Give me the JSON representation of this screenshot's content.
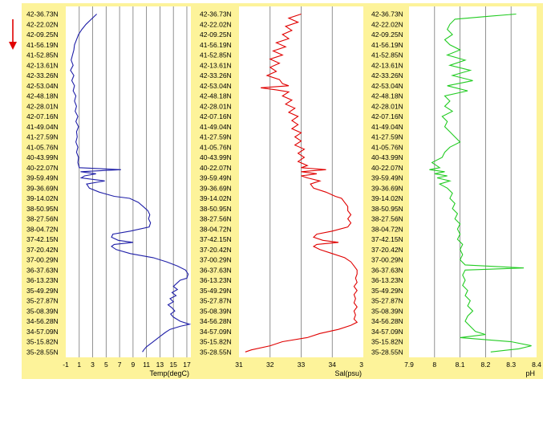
{
  "chart_data": [
    {
      "type": "line",
      "series": [
        {
          "name": "Temp(degC)",
          "color": "#1f1fa8"
        }
      ],
      "xlabel": "Temp(degC)",
      "x_ticks": [
        "-1",
        "1",
        "3",
        "5",
        "7",
        "9",
        "11",
        "13",
        "15",
        "17"
      ],
      "xlim": [
        -1,
        17.6
      ],
      "y_ticks": [
        "42-36.73N",
        "42-22.02N",
        "42-09.25N",
        "41-56.19N",
        "41-52.85N",
        "42-13.61N",
        "42-33.26N",
        "42-53.04N",
        "42-48.18N",
        "42-28.01N",
        "42-07.16N",
        "41-49.04N",
        "41-27.59N",
        "41-05.76N",
        "40-43.99N",
        "40-22.07N",
        "39-59.49N",
        "39-36.69N",
        "39-14.02N",
        "38-50.95N",
        "38-27.56N",
        "38-04.72N",
        "37-42.15N",
        "37-20.42N",
        "37-00.29N",
        "36-37.63N",
        "36-13.23N",
        "35-49.29N",
        "35-27.87N",
        "35-08.39N",
        "34-56.28N",
        "34-57.09N",
        "35-15.82N",
        "35-28.55N"
      ],
      "profile": [
        [
          0,
          3.6
        ],
        [
          0.5,
          2.8
        ],
        [
          1,
          2.0
        ],
        [
          1.5,
          1.4
        ],
        [
          2,
          0.9
        ],
        [
          2.5,
          0.6
        ],
        [
          3,
          0.3
        ],
        [
          3.5,
          0.2
        ],
        [
          4,
          0.0
        ],
        [
          4.5,
          -0.2
        ],
        [
          5,
          0.1
        ],
        [
          5.5,
          -0.3
        ],
        [
          6,
          0.2
        ],
        [
          6.5,
          -0.1
        ],
        [
          7,
          0.3
        ],
        [
          7.5,
          0.1
        ],
        [
          8,
          0.5
        ],
        [
          8.5,
          0.3
        ],
        [
          9,
          0.6
        ],
        [
          9.5,
          0.4
        ],
        [
          10,
          0.8
        ],
        [
          10.5,
          0.5
        ],
        [
          11,
          0.9
        ],
        [
          11.5,
          0.6
        ],
        [
          12,
          0.7
        ],
        [
          12.5,
          0.5
        ],
        [
          13,
          0.8
        ],
        [
          13.5,
          0.6
        ],
        [
          14,
          0.9
        ],
        [
          14.5,
          0.8
        ],
        [
          15,
          1.0
        ],
        [
          15.2,
          7.2
        ],
        [
          15.4,
          1.2
        ],
        [
          15.6,
          3.5
        ],
        [
          15.8,
          1.8
        ],
        [
          16,
          1.3
        ],
        [
          16.3,
          4.8
        ],
        [
          16.6,
          2.1
        ],
        [
          17,
          2.5
        ],
        [
          17.4,
          4.0
        ],
        [
          17.8,
          6.2
        ],
        [
          18,
          8.5
        ],
        [
          18.4,
          9.8
        ],
        [
          18.8,
          10.5
        ],
        [
          19.2,
          11.2
        ],
        [
          19.6,
          11.5
        ],
        [
          20,
          11.3
        ],
        [
          20.4,
          11.6
        ],
        [
          20.8,
          11.4
        ],
        [
          21.2,
          8.6
        ],
        [
          21.5,
          6.0
        ],
        [
          21.8,
          5.8
        ],
        [
          22.1,
          6.8
        ],
        [
          22.3,
          9.0
        ],
        [
          22.5,
          6.2
        ],
        [
          22.7,
          5.8
        ],
        [
          23,
          6.5
        ],
        [
          23.4,
          8.6
        ],
        [
          23.8,
          12.0
        ],
        [
          24.2,
          14.0
        ],
        [
          24.6,
          15.6
        ],
        [
          25,
          16.8
        ],
        [
          25.4,
          17.2
        ],
        [
          25.8,
          17.0
        ],
        [
          26,
          16.0
        ],
        [
          26.3,
          15.5
        ],
        [
          26.6,
          15.0
        ],
        [
          26.9,
          15.6
        ],
        [
          27.2,
          14.8
        ],
        [
          27.5,
          15.4
        ],
        [
          27.8,
          14.5
        ],
        [
          28.1,
          15.0
        ],
        [
          28.4,
          14.2
        ],
        [
          28.7,
          14.8
        ],
        [
          29,
          15.2
        ],
        [
          29.3,
          14.6
        ],
        [
          29.6,
          15.0
        ],
        [
          30,
          16.0
        ],
        [
          30.3,
          17.4
        ],
        [
          30.5,
          16.0
        ],
        [
          30.8,
          14.5
        ],
        [
          31.1,
          13.8
        ],
        [
          31.5,
          13.0
        ],
        [
          32,
          12.0
        ],
        [
          32.5,
          11.0
        ],
        [
          32.8,
          10.6
        ],
        [
          33,
          10.4
        ]
      ]
    },
    {
      "type": "line",
      "series": [
        {
          "name": "Sal(psu)",
          "color": "#e00000"
        }
      ],
      "xlabel": "Sal(psu)",
      "x_ticks": [
        "31",
        "32",
        "33",
        "34",
        "35"
      ],
      "xlim": [
        31,
        35
      ],
      "profile": [
        [
          0,
          33.0
        ],
        [
          0.4,
          32.6
        ],
        [
          0.8,
          32.9
        ],
        [
          1.2,
          32.5
        ],
        [
          1.6,
          32.7
        ],
        [
          2,
          32.4
        ],
        [
          2.4,
          32.6
        ],
        [
          2.8,
          32.2
        ],
        [
          3.2,
          32.5
        ],
        [
          3.6,
          32.1
        ],
        [
          4,
          32.4
        ],
        [
          4.4,
          32.0
        ],
        [
          4.8,
          32.3
        ],
        [
          5.2,
          32.0
        ],
        [
          5.6,
          32.2
        ],
        [
          6,
          31.9
        ],
        [
          6.4,
          32.3
        ],
        [
          6.8,
          32.4
        ],
        [
          7,
          32.6
        ],
        [
          7.2,
          31.7
        ],
        [
          7.4,
          32.2
        ],
        [
          7.6,
          32.6
        ],
        [
          8,
          32.4
        ],
        [
          8.4,
          32.7
        ],
        [
          8.8,
          32.5
        ],
        [
          9.2,
          32.8
        ],
        [
          9.6,
          32.6
        ],
        [
          10,
          32.9
        ],
        [
          10.4,
          32.7
        ],
        [
          10.8,
          32.9
        ],
        [
          11.2,
          32.7
        ],
        [
          11.6,
          33.0
        ],
        [
          12,
          32.8
        ],
        [
          12.4,
          33.0
        ],
        [
          12.8,
          32.8
        ],
        [
          13.2,
          33.1
        ],
        [
          13.6,
          32.9
        ],
        [
          14,
          33.1
        ],
        [
          14.4,
          32.9
        ],
        [
          14.8,
          33.2
        ],
        [
          15,
          33.0
        ],
        [
          15.2,
          33.8
        ],
        [
          15.4,
          33.0
        ],
        [
          15.6,
          33.5
        ],
        [
          15.8,
          33.0
        ],
        [
          16,
          33.2
        ],
        [
          16.3,
          33.6
        ],
        [
          16.6,
          33.3
        ],
        [
          17,
          33.4
        ],
        [
          17.4,
          33.8
        ],
        [
          17.8,
          34.1
        ],
        [
          18,
          34.3
        ],
        [
          18.4,
          34.4
        ],
        [
          18.8,
          34.5
        ],
        [
          19.2,
          34.5
        ],
        [
          19.6,
          34.6
        ],
        [
          20,
          34.5
        ],
        [
          20.4,
          34.6
        ],
        [
          20.8,
          34.5
        ],
        [
          21.2,
          34.0
        ],
        [
          21.5,
          33.5
        ],
        [
          21.8,
          33.4
        ],
        [
          22.1,
          33.7
        ],
        [
          22.3,
          34.2
        ],
        [
          22.5,
          33.5
        ],
        [
          22.7,
          33.4
        ],
        [
          23,
          33.6
        ],
        [
          23.4,
          34.0
        ],
        [
          23.8,
          34.4
        ],
        [
          24.2,
          34.6
        ],
        [
          24.6,
          34.7
        ],
        [
          25,
          34.8
        ],
        [
          25.4,
          34.8
        ],
        [
          25.8,
          34.75
        ],
        [
          26.2,
          34.8
        ],
        [
          26.6,
          34.7
        ],
        [
          27,
          34.8
        ],
        [
          27.4,
          34.7
        ],
        [
          27.8,
          34.75
        ],
        [
          28.2,
          34.7
        ],
        [
          28.6,
          34.8
        ],
        [
          29,
          34.7
        ],
        [
          29.4,
          34.75
        ],
        [
          29.8,
          34.7
        ],
        [
          30.1,
          34.8
        ],
        [
          30.4,
          34.6
        ],
        [
          30.8,
          34.2
        ],
        [
          31.2,
          33.6
        ],
        [
          31.6,
          33.2
        ],
        [
          32,
          32.4
        ],
        [
          32.4,
          32.0
        ],
        [
          32.8,
          31.4
        ],
        [
          33,
          31.2
        ]
      ]
    },
    {
      "type": "line",
      "series": [
        {
          "name": "pH",
          "color": "#22cc22"
        }
      ],
      "xlabel": "pH",
      "x_ticks": [
        "7.9",
        "8",
        "8.1",
        "8.2",
        "8.3",
        "8.4"
      ],
      "xlim": [
        7.9,
        8.4
      ],
      "profile": [
        [
          0,
          8.32
        ],
        [
          0.2,
          8.22
        ],
        [
          0.5,
          8.08
        ],
        [
          1,
          8.06
        ],
        [
          1.5,
          8.05
        ],
        [
          2,
          8.07
        ],
        [
          2.5,
          8.04
        ],
        [
          3,
          8.06
        ],
        [
          3.5,
          8.1
        ],
        [
          4,
          8.05
        ],
        [
          4.5,
          8.12
        ],
        [
          5,
          8.06
        ],
        [
          5.5,
          8.14
        ],
        [
          6,
          8.07
        ],
        [
          6.5,
          8.15
        ],
        [
          7,
          8.05
        ],
        [
          7.5,
          8.13
        ],
        [
          8,
          8.04
        ],
        [
          8.5,
          8.06
        ],
        [
          9,
          8.04
        ],
        [
          9.5,
          8.07
        ],
        [
          10,
          8.03
        ],
        [
          10.5,
          8.05
        ],
        [
          11,
          8.04
        ],
        [
          11.5,
          8.06
        ],
        [
          12,
          8.08
        ],
        [
          12.5,
          8.1
        ],
        [
          13,
          8.06
        ],
        [
          13.5,
          8.04
        ],
        [
          14,
          8.03
        ],
        [
          14.5,
          7.99
        ],
        [
          15,
          8.02
        ],
        [
          15.2,
          7.98
        ],
        [
          15.4,
          8.04
        ],
        [
          15.6,
          8.0
        ],
        [
          15.8,
          8.05
        ],
        [
          16,
          8.01
        ],
        [
          16.3,
          8.06
        ],
        [
          16.6,
          8.02
        ],
        [
          17,
          8.05
        ],
        [
          17.5,
          8.07
        ],
        [
          18,
          8.06
        ],
        [
          18.5,
          8.08
        ],
        [
          19,
          8.07
        ],
        [
          19.5,
          8.09
        ],
        [
          20,
          8.08
        ],
        [
          20.5,
          8.1
        ],
        [
          21,
          8.09
        ],
        [
          21.5,
          8.1
        ],
        [
          22,
          8.09
        ],
        [
          22.5,
          8.11
        ],
        [
          23,
          8.1
        ],
        [
          23.5,
          8.11
        ],
        [
          24,
          8.1
        ],
        [
          24.5,
          8.12
        ],
        [
          24.8,
          8.35
        ],
        [
          25,
          8.12
        ],
        [
          25.5,
          8.11
        ],
        [
          26,
          8.12
        ],
        [
          26.5,
          8.11
        ],
        [
          27,
          8.13
        ],
        [
          27.5,
          8.12
        ],
        [
          28,
          8.14
        ],
        [
          28.5,
          8.13
        ],
        [
          29,
          8.15
        ],
        [
          29.5,
          8.13
        ],
        [
          30,
          8.12
        ],
        [
          30.5,
          8.14
        ],
        [
          31,
          8.16
        ],
        [
          31.3,
          8.2
        ],
        [
          31.6,
          8.1
        ],
        [
          32,
          8.3
        ],
        [
          32.4,
          8.38
        ],
        [
          32.7,
          8.33
        ],
        [
          33,
          8.22
        ]
      ]
    }
  ],
  "colors": {
    "panel_bg": "#fdf39a",
    "plot_bg": "#ffffff",
    "gridline": "#777777",
    "arrow": "#e00000"
  },
  "icons": {
    "depth_arrow": "down-arrow-icon"
  }
}
